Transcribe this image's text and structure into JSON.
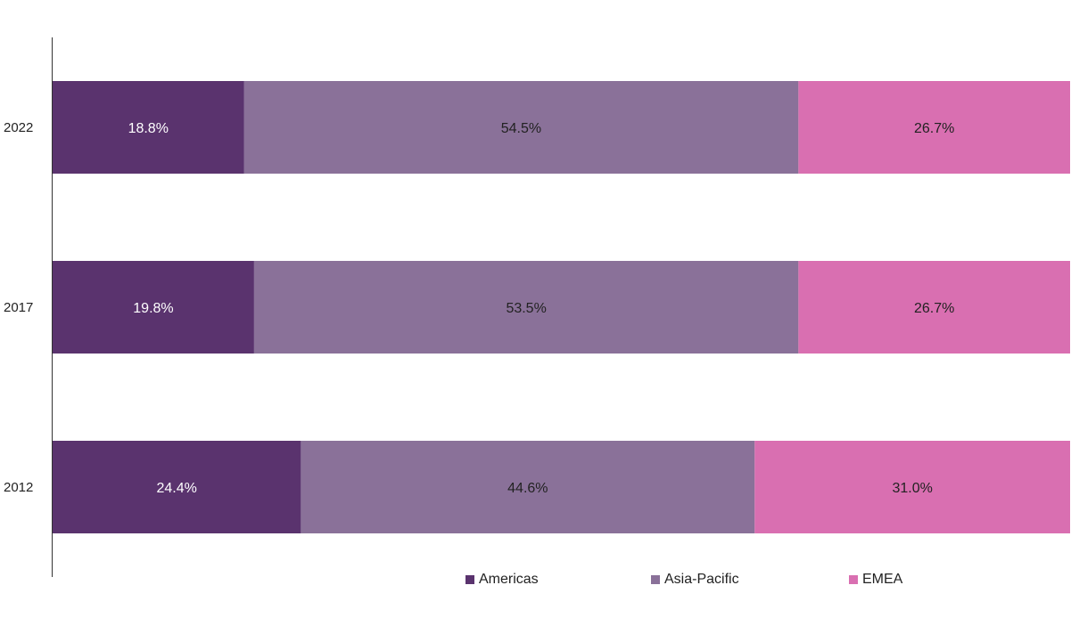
{
  "chart_data": {
    "type": "bar",
    "orientation": "horizontal",
    "stacked": true,
    "categories": [
      "2022",
      "2017",
      "2012"
    ],
    "series": [
      {
        "name": "Americas",
        "color": "#5a336e",
        "values": [
          18.8,
          19.8,
          24.4
        ],
        "labels": [
          "18.8%",
          "19.8%",
          "24.4%"
        ],
        "label_color": "#ffffff"
      },
      {
        "name": "Asia-Pacific",
        "color": "#8a7199",
        "values": [
          54.5,
          53.5,
          44.6
        ],
        "labels": [
          "54.5%",
          "53.5%",
          "44.6%"
        ],
        "label_color": "#222222"
      },
      {
        "name": "EMEA",
        "color": "#d96fb1",
        "values": [
          26.7,
          26.7,
          31.0
        ],
        "labels": [
          "26.7%",
          "26.7%",
          "31.0%"
        ],
        "label_color": "#222222"
      }
    ],
    "xlim": [
      0,
      100
    ],
    "title": "",
    "xlabel": "",
    "ylabel": "",
    "grid": false,
    "legend_position": "bottom"
  }
}
